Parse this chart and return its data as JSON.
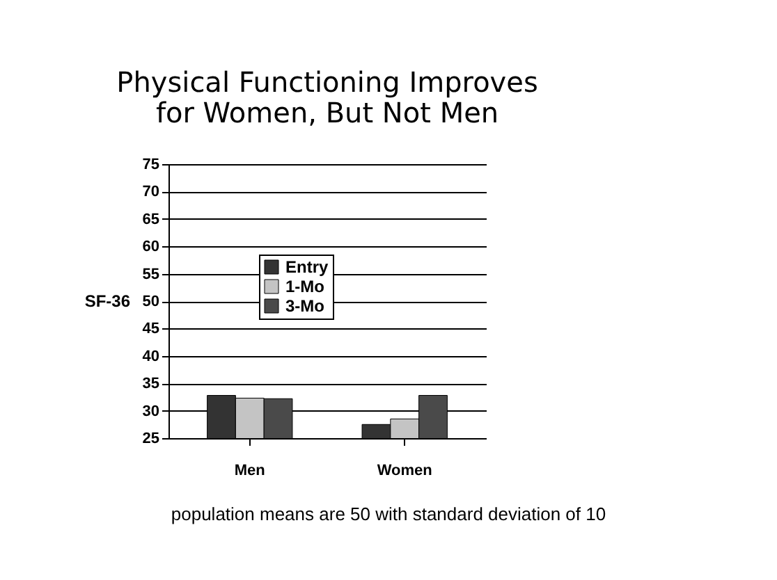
{
  "chart_data": {
    "type": "bar",
    "title": "Physical Functioning Improves for Women, But Not Men",
    "ylabel": "SF-36",
    "categories": [
      "Men",
      "Women"
    ],
    "series": [
      {
        "name": "Entry",
        "color": "#333333",
        "values": [
          32.8,
          27.5
        ]
      },
      {
        "name": "1-Mo",
        "color": "#c4c4c4",
        "values": [
          32.3,
          28.5
        ]
      },
      {
        "name": "3-Mo",
        "color": "#4a4a4a",
        "values": [
          32.2,
          32.8
        ]
      }
    ],
    "ylim": [
      25,
      75
    ],
    "yticks": [
      25,
      30,
      35,
      40,
      45,
      50,
      55,
      60,
      65,
      70,
      75
    ],
    "grid": "y",
    "legend": "top left",
    "annotations": [
      "population means are 50 with standard deviation of 10"
    ]
  }
}
